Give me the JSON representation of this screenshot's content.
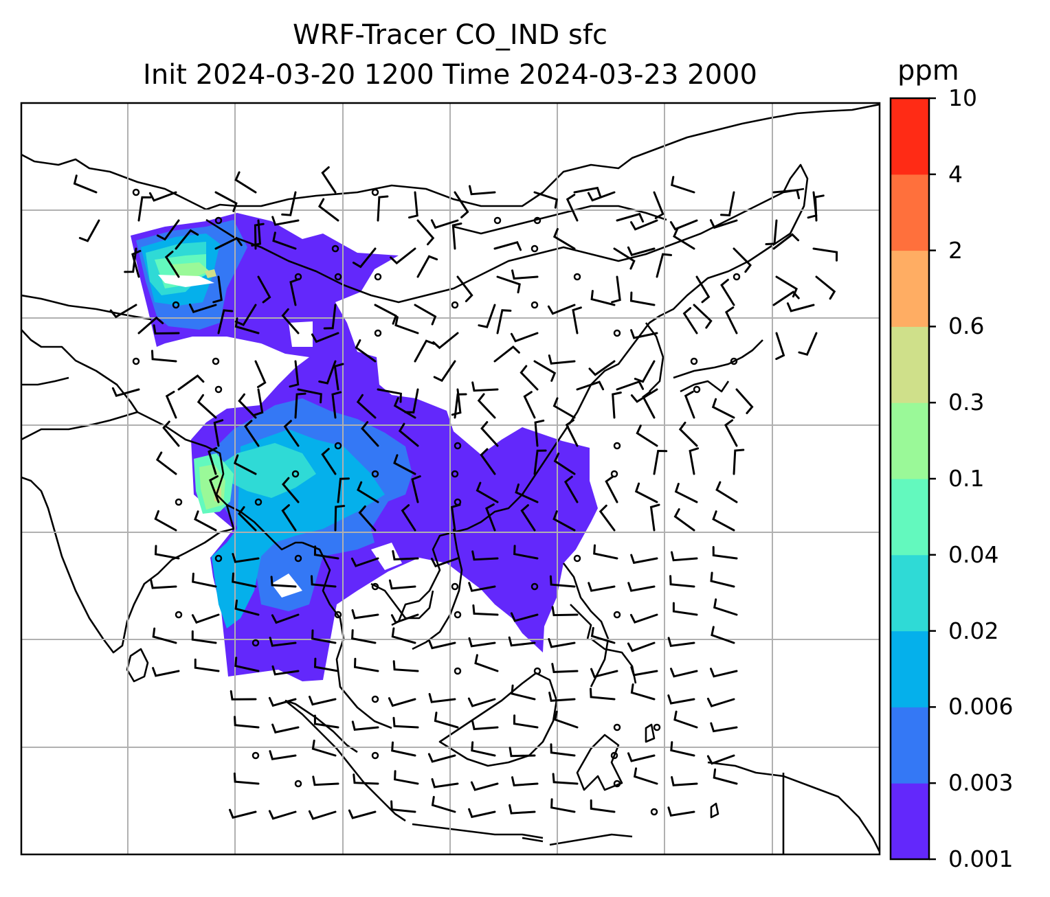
{
  "title": {
    "line1": "WRF-Tracer CO_IND sfc",
    "line2": "Init 2024-03-20 1200 Time 2024-03-23 2000"
  },
  "colorbar": {
    "unit": "ppm",
    "levels": [
      "0.001",
      "0.003",
      "0.006",
      "0.02",
      "0.04",
      "0.1",
      "0.3",
      "0.6",
      "2",
      "4",
      "10"
    ],
    "colors": [
      "#6328fb",
      "#3478f5",
      "#05b0eb",
      "#2fdad6",
      "#63f9be",
      "#9af998",
      "#cfe08a",
      "#ffad63",
      "#ff703c",
      "#ff2b15"
    ]
  },
  "map": {
    "gridlines": true,
    "grid_color": "#b0b0b0",
    "coastline_color": "#000000",
    "overlay": "wind barbs"
  }
}
